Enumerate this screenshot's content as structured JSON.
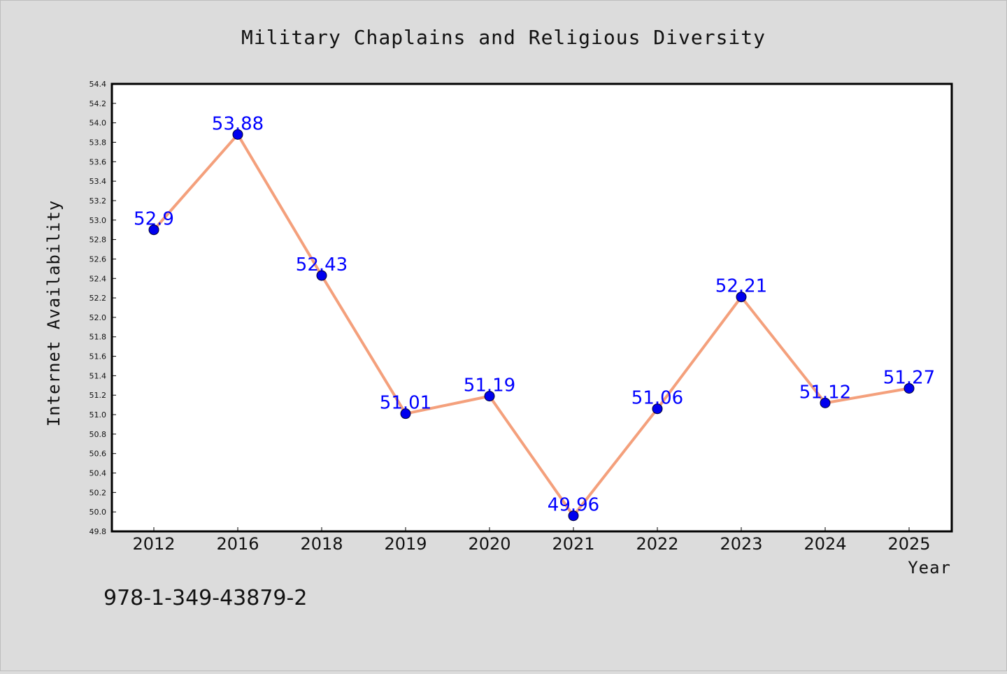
{
  "chart_data": {
    "type": "line",
    "title": "Military Chaplains and Religious Diversity",
    "xlabel": "Year",
    "ylabel": "Internet Availability",
    "categories": [
      "2012",
      "2016",
      "2018",
      "2019",
      "2020",
      "2021",
      "2022",
      "2023",
      "2024",
      "2025"
    ],
    "series": [
      {
        "values": [
          52.9,
          53.88,
          52.43,
          51.01,
          51.19,
          49.96,
          51.06,
          52.21,
          51.12,
          51.27
        ],
        "line_color": "#f4a07c",
        "marker_color": "#0000ee"
      }
    ],
    "data_labels": [
      "52.9",
      "53.88",
      "52.43",
      "51.01",
      "51.19",
      "49.96",
      "51.06",
      "52.21",
      "51.12",
      "51.27"
    ],
    "ylim": [
      49.8,
      54.4
    ],
    "yticks": [
      "49.8",
      "50.0",
      "50.2",
      "50.4",
      "50.6",
      "50.8",
      "51.0",
      "51.2",
      "51.4",
      "51.6",
      "51.8",
      "52.0",
      "52.2",
      "52.4",
      "52.6",
      "52.8",
      "53.0",
      "53.2",
      "53.4",
      "53.6",
      "53.8",
      "54.0",
      "54.2",
      "54.4"
    ],
    "grid": false,
    "legend": "none",
    "label_color": "#0000ff",
    "background_color": "#dcdcdc",
    "plot_background_color": "#ffffff"
  },
  "footer": {
    "isbn": "978-1-349-43879-2"
  }
}
